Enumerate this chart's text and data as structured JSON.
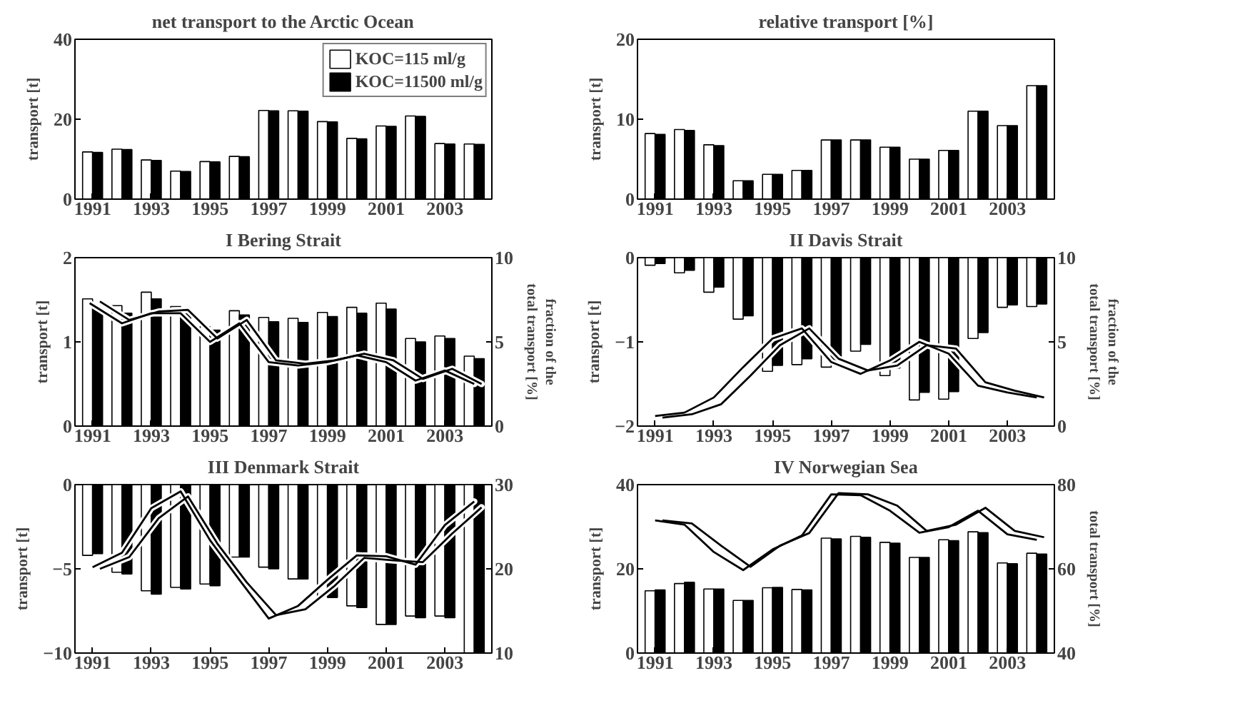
{
  "chart_data": [
    {
      "type": "bar",
      "title": "net transport to the Arctic Ocean",
      "ylabel": "transport [t]",
      "x": [
        1991,
        1992,
        1993,
        1994,
        1995,
        1996,
        1997,
        1998,
        1999,
        2000,
        2001,
        2002,
        2003,
        2004
      ],
      "xlim": [
        1990.4,
        2004.6
      ],
      "xticks": [
        1991,
        1993,
        1995,
        1997,
        1999,
        2001,
        2003
      ],
      "ylim": [
        0,
        40
      ],
      "yticks": [
        0,
        20,
        40
      ],
      "legend": "top right",
      "series": [
        {
          "name": "KOC=115 ml/g",
          "color": "#ffffff",
          "values": [
            11.8,
            12.5,
            9.8,
            7.0,
            9.4,
            10.7,
            22.2,
            22.1,
            19.4,
            15.2,
            18.3,
            20.8,
            13.9,
            13.8
          ]
        },
        {
          "name": "KOC=11500 ml/g",
          "color": "#000000",
          "values": [
            11.7,
            12.4,
            9.7,
            6.9,
            9.3,
            10.6,
            22.1,
            22.0,
            19.3,
            15.1,
            18.2,
            20.7,
            13.8,
            13.7
          ]
        }
      ]
    },
    {
      "type": "bar",
      "title": "relative transport [%]",
      "ylabel": "transport [t]",
      "x": [
        1991,
        1992,
        1993,
        1994,
        1995,
        1996,
        1997,
        1998,
        1999,
        2000,
        2001,
        2002,
        2003,
        2004
      ],
      "xlim": [
        1990.4,
        2004.6
      ],
      "xticks": [
        1991,
        1993,
        1995,
        1997,
        1999,
        2001,
        2003
      ],
      "ylim": [
        0,
        20
      ],
      "yticks": [
        0,
        10,
        20
      ],
      "series": [
        {
          "color": "#ffffff",
          "values": [
            8.2,
            8.7,
            6.8,
            2.3,
            3.1,
            3.6,
            7.4,
            7.4,
            6.5,
            5.0,
            6.1,
            11.0,
            9.2,
            14.2
          ]
        },
        {
          "color": "#000000",
          "values": [
            8.1,
            8.6,
            6.7,
            2.3,
            3.1,
            3.6,
            7.4,
            7.4,
            6.5,
            5.0,
            6.1,
            11.0,
            9.2,
            14.2
          ]
        }
      ]
    },
    {
      "type": "bar",
      "title": "I Bering Strait",
      "ylabel": "transport [t]",
      "y2label": "fraction of the total transport [%]",
      "x": [
        1991,
        1992,
        1993,
        1994,
        1995,
        1996,
        1997,
        1998,
        1999,
        2000,
        2001,
        2002,
        2003,
        2004
      ],
      "xlim": [
        1990.4,
        2004.6
      ],
      "xticks": [
        1991,
        1993,
        1995,
        1997,
        1999,
        2001,
        2003
      ],
      "ylim": [
        0,
        2
      ],
      "yticks": [
        0,
        1,
        2
      ],
      "y2lim": [
        0,
        10
      ],
      "y2ticks": [
        0,
        5,
        10
      ],
      "series": [
        {
          "color": "#ffffff",
          "values": [
            1.51,
            1.43,
            1.59,
            1.42,
            1.18,
            1.37,
            1.29,
            1.28,
            1.35,
            1.41,
            1.46,
            1.04,
            1.07,
            0.83
          ]
        },
        {
          "color": "#000000",
          "values": [
            1.4,
            1.34,
            1.51,
            1.36,
            1.14,
            1.32,
            1.24,
            1.23,
            1.3,
            1.34,
            1.39,
            1.0,
            1.04,
            0.8
          ]
        },
        {
          "type": "line",
          "axis": "y2",
          "color": "#000000",
          "x": [
            1990.9,
            1992,
            1993,
            1994,
            1995,
            1996,
            1997,
            1998,
            1999,
            2000,
            2001,
            2002,
            2003,
            2004
          ],
          "values": [
            7.3,
            6.1,
            6.7,
            6.7,
            5.0,
            6.1,
            3.8,
            3.6,
            3.8,
            4.2,
            3.8,
            2.7,
            3.3,
            2.5
          ]
        },
        {
          "type": "line",
          "axis": "y2",
          "color": "#000000",
          "x": [
            1991.25,
            1992.25,
            1993.25,
            1994.25,
            1995.25,
            1996.25,
            1997.25,
            1998.25,
            1999.25,
            2000.25,
            2001.25,
            2002.25,
            2003.25,
            2004.25
          ],
          "values": [
            7.4,
            6.3,
            6.8,
            6.9,
            5.2,
            6.3,
            3.9,
            3.7,
            3.9,
            4.3,
            3.9,
            2.8,
            3.4,
            2.5
          ]
        }
      ]
    },
    {
      "type": "bar",
      "title": "II Davis Strait",
      "ylabel": "transport [t]",
      "y2label": "fraction of the total transport [%]",
      "x": [
        1991,
        1992,
        1993,
        1994,
        1995,
        1996,
        1997,
        1998,
        1999,
        2000,
        2001,
        2002,
        2003,
        2004
      ],
      "xlim": [
        1990.4,
        2004.6
      ],
      "xticks": [
        1991,
        1993,
        1995,
        1997,
        1999,
        2001,
        2003
      ],
      "ylim": [
        -2,
        0
      ],
      "yticks": [
        -2,
        -1,
        0
      ],
      "y2lim": [
        0,
        10
      ],
      "y2ticks": [
        0,
        5,
        10
      ],
      "series": [
        {
          "color": "#ffffff",
          "values": [
            -0.09,
            -0.18,
            -0.41,
            -0.73,
            -1.35,
            -1.27,
            -1.3,
            -1.11,
            -1.4,
            -1.69,
            -1.68,
            -0.96,
            -0.59,
            -0.58
          ]
        },
        {
          "color": "#000000",
          "values": [
            -0.07,
            -0.15,
            -0.35,
            -0.69,
            -1.28,
            -1.2,
            -1.23,
            -1.03,
            -1.31,
            -1.6,
            -1.59,
            -0.89,
            -0.56,
            -0.55
          ]
        },
        {
          "type": "line",
          "axis": "y2",
          "color": "#000000",
          "x": [
            1991,
            1992,
            1993,
            1994,
            1995,
            1996,
            1997,
            1998,
            1999,
            2000,
            2001,
            2002,
            2003,
            2004
          ],
          "values": [
            0.6,
            0.8,
            1.7,
            3.5,
            5.2,
            5.8,
            3.8,
            3.1,
            3.9,
            5.0,
            4.3,
            2.4,
            2.0,
            1.7
          ]
        },
        {
          "type": "line",
          "axis": "y2",
          "color": "#000000",
          "x": [
            1991.25,
            1992.25,
            1993.25,
            1994.25,
            1995.25,
            1996.25,
            1997.25,
            1998.25,
            1999.25,
            2000.25,
            2001.25,
            2002.25,
            2003.25,
            2004.25
          ],
          "values": [
            0.5,
            0.7,
            1.3,
            3.0,
            4.8,
            5.8,
            4.0,
            3.3,
            3.6,
            4.8,
            4.6,
            2.6,
            2.1,
            1.7
          ]
        }
      ]
    },
    {
      "type": "bar",
      "title": "III Denmark Strait",
      "ylabel": "transport [t]",
      "x": [
        1991,
        1992,
        1993,
        1994,
        1995,
        1996,
        1997,
        1998,
        1999,
        2000,
        2001,
        2002,
        2003,
        2004
      ],
      "xlim": [
        1990.4,
        2004.6
      ],
      "xticks": [
        1991,
        1993,
        1995,
        1997,
        1999,
        2001,
        2003
      ],
      "ylim": [
        -10,
        0
      ],
      "yticks": [
        -10,
        -5,
        0
      ],
      "y2lim": [
        10,
        30
      ],
      "y2ticks": [
        10,
        20,
        30
      ],
      "series": [
        {
          "color": "#ffffff",
          "values": [
            -4.2,
            -5.2,
            -6.3,
            -6.1,
            -5.9,
            -4.3,
            -4.9,
            -5.6,
            -6.6,
            -7.2,
            -8.3,
            -7.8,
            -7.8,
            -10
          ]
        },
        {
          "color": "#000000",
          "values": [
            -4.1,
            -5.3,
            -6.5,
            -6.2,
            -6.0,
            -4.3,
            -5.0,
            -5.6,
            -6.7,
            -7.3,
            -8.3,
            -7.9,
            -7.9,
            -10
          ]
        },
        {
          "type": "line",
          "axis": "y2",
          "color": "#000000",
          "x": [
            1991,
            1992,
            1993,
            1994,
            1995,
            1996,
            1997,
            1998,
            1999,
            2000,
            2001,
            2002,
            2003,
            2004
          ],
          "values": [
            20.2,
            21.9,
            27.2,
            29.2,
            23.4,
            18.7,
            14.1,
            15.6,
            18.7,
            21.6,
            21.5,
            20.5,
            25.2,
            28.0
          ]
        },
        {
          "type": "line",
          "axis": "y2",
          "color": "#000000",
          "x": [
            1991.25,
            1992.25,
            1993.25,
            1994.25,
            1995.25,
            1996.25,
            1997.25,
            1998.25,
            1999.25,
            2000.25,
            2001.25,
            2002.25,
            2003.25,
            2004.25
          ],
          "values": [
            20.0,
            21.4,
            26.0,
            28.6,
            23.0,
            18.4,
            14.5,
            15.2,
            18.0,
            21.3,
            21.0,
            20.8,
            24.2,
            27.3
          ]
        }
      ]
    },
    {
      "type": "bar",
      "title": "IV Norwegian Sea",
      "ylabel": "transport [t]",
      "y2label": "total transport [%]",
      "x": [
        1991,
        1992,
        1993,
        1994,
        1995,
        1996,
        1997,
        1998,
        1999,
        2000,
        2001,
        2002,
        2003,
        2004
      ],
      "xlim": [
        1990.4,
        2004.6
      ],
      "xticks": [
        1991,
        1993,
        1995,
        1997,
        1999,
        2001,
        2003
      ],
      "ylim": [
        0,
        40
      ],
      "yticks": [
        0,
        20,
        40
      ],
      "y2lim": [
        40,
        80
      ],
      "y2ticks": [
        40,
        60,
        80
      ],
      "series": [
        {
          "color": "#ffffff",
          "values": [
            14.8,
            16.5,
            15.2,
            12.5,
            15.5,
            15.1,
            27.3,
            27.7,
            26.3,
            22.7,
            26.9,
            28.8,
            21.4,
            23.7
          ]
        },
        {
          "color": "#000000",
          "values": [
            15.0,
            16.8,
            15.2,
            12.5,
            15.6,
            15.0,
            27.1,
            27.5,
            26.1,
            22.7,
            26.7,
            28.6,
            21.2,
            23.5
          ]
        },
        {
          "type": "line",
          "axis": "y2",
          "color": "#000000",
          "x": [
            1991,
            1992,
            1993,
            1994,
            1995,
            1996,
            1997,
            1998,
            1999,
            2000,
            2001,
            2002,
            2003,
            2004
          ],
          "values": [
            71.5,
            70.5,
            64.0,
            59.7,
            64.6,
            67.9,
            77.7,
            77.5,
            73.8,
            68.6,
            69.9,
            73.8,
            68.2,
            66.9
          ]
        },
        {
          "type": "line",
          "axis": "y2",
          "color": "#000000",
          "x": [
            1991.25,
            1992.25,
            1993.25,
            1994.25,
            1995.25,
            1996.25,
            1997.25,
            1998.25,
            1999.25,
            2000.25,
            2001.25,
            2002.25,
            2003.25,
            2004.25
          ],
          "values": [
            71.5,
            70.8,
            65.5,
            60.5,
            65.5,
            68.5,
            78.0,
            77.7,
            75.0,
            69.0,
            70.5,
            74.5,
            69.0,
            67.5
          ]
        }
      ]
    }
  ]
}
